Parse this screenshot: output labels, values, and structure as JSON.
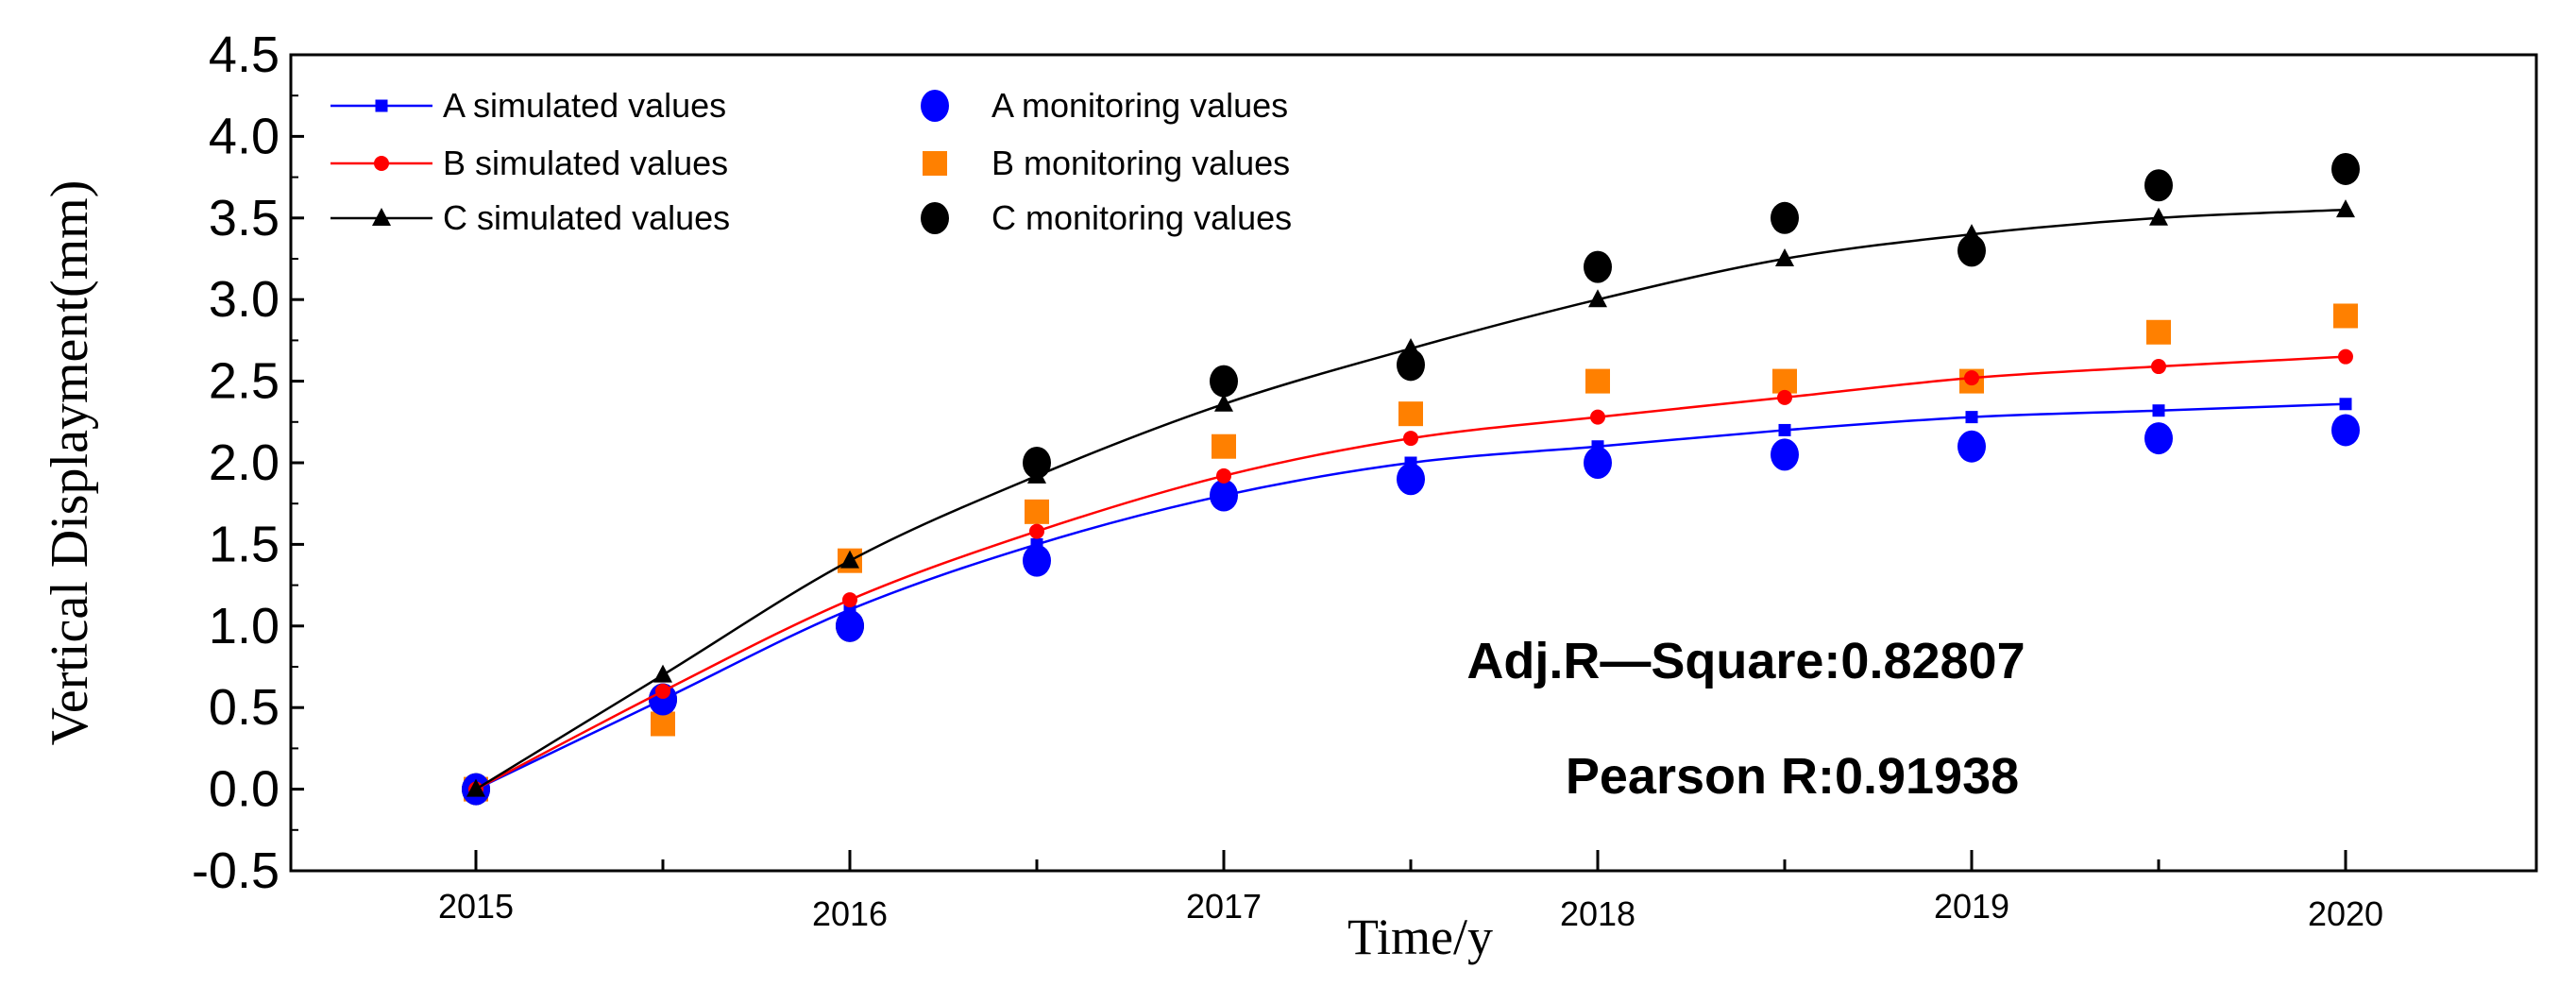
{
  "chart_data": {
    "type": "line",
    "title": "",
    "xlabel": "Time/y",
    "ylabel": "Vertical Displayment(mm)",
    "xlim": [
      2014.5,
      2020.5
    ],
    "ylim": [
      -0.5,
      4.5
    ],
    "x_ticks": [
      2015,
      2016,
      2017,
      2018,
      2019,
      2020
    ],
    "y_ticks": [
      -0.5,
      0.0,
      0.5,
      1.0,
      1.5,
      2.0,
      2.5,
      3.0,
      3.5,
      4.0,
      4.5
    ],
    "y_tick_labels": [
      "-0.5",
      "0.0",
      "0.5",
      "1.0",
      "1.5",
      "2.0",
      "2.5",
      "3.0",
      "3.5",
      "4.0",
      "4.5"
    ],
    "grid": false,
    "legend_position": "top-left",
    "x": [
      2015,
      2015.5,
      2016,
      2016.5,
      2017,
      2017.5,
      2018,
      2018.5,
      2019,
      2019.5,
      2020
    ],
    "series": [
      {
        "name": "A simulated values",
        "kind": "line",
        "marker": "square",
        "color": "#0000ff",
        "values": [
          0,
          0.55,
          1.1,
          1.5,
          1.8,
          2.0,
          2.1,
          2.2,
          2.28,
          2.32,
          2.36
        ]
      },
      {
        "name": "B simulated values",
        "kind": "line",
        "marker": "circle-small",
        "color": "#ff0000",
        "values": [
          0,
          0.6,
          1.16,
          1.58,
          1.92,
          2.15,
          2.28,
          2.4,
          2.52,
          2.59,
          2.65
        ]
      },
      {
        "name": "C simulated values",
        "kind": "line",
        "marker": "triangle",
        "color": "#000000",
        "values": [
          0,
          0.7,
          1.4,
          1.92,
          2.36,
          2.7,
          3.0,
          3.25,
          3.4,
          3.5,
          3.55
        ]
      },
      {
        "name": "A monitoring values",
        "kind": "scatter",
        "marker": "circle",
        "color": "#0000ff",
        "values": [
          0,
          0.55,
          1.0,
          1.4,
          1.8,
          1.9,
          2.0,
          2.05,
          2.1,
          2.15,
          2.2
        ]
      },
      {
        "name": "B monitoring values",
        "kind": "scatter",
        "marker": "square",
        "color": "#ff8000",
        "values": [
          0,
          0.4,
          1.4,
          1.7,
          2.1,
          2.3,
          2.5,
          2.5,
          2.5,
          2.8,
          2.9
        ]
      },
      {
        "name": "C monitoring values",
        "kind": "scatter",
        "marker": "circle",
        "color": "#000000",
        "values": [
          0,
          0.55,
          1.0,
          2.0,
          2.5,
          2.6,
          3.2,
          3.5,
          3.3,
          3.7,
          3.8
        ]
      }
    ],
    "annotations": [
      "Adj.R—Square:0.82807",
      "Pearson R:0.91938"
    ]
  }
}
